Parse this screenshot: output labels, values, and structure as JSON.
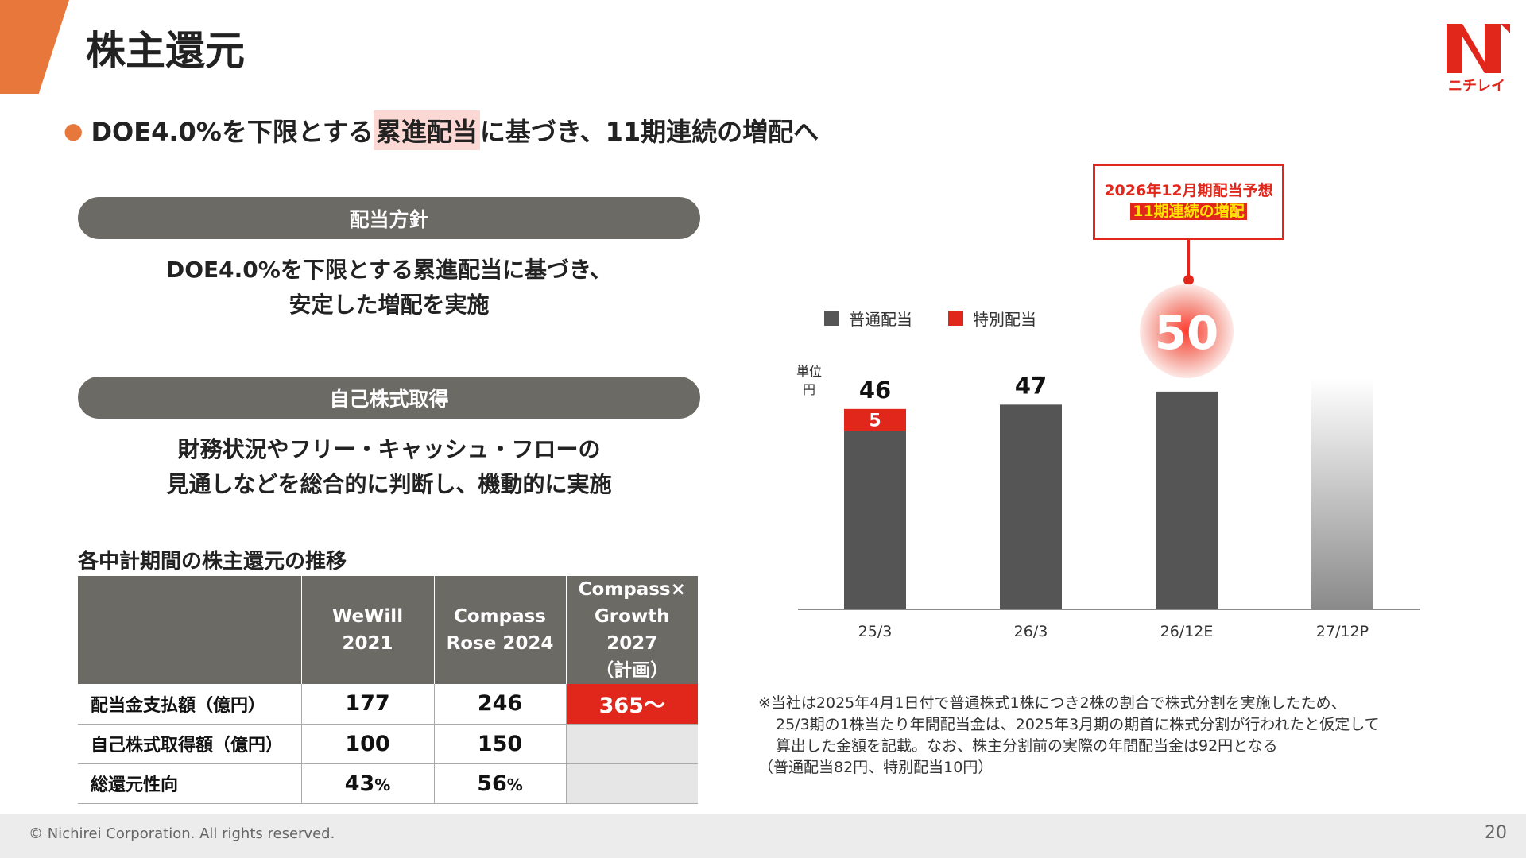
{
  "header": {
    "title": "株主還元",
    "logo_text": "ニチレイ",
    "brand_color": "#e1261c",
    "accent_color": "#e8773b"
  },
  "headline": {
    "bullet": "●",
    "before": "DOE4.0%を下限とする",
    "highlight": "累進配当",
    "after": "に基づき、11期連続の増配へ"
  },
  "policy": {
    "label": "配当方針",
    "line1": "DOE4.0%を下限とする累進配当に基づき、",
    "line2": "安定した増配を実施"
  },
  "buyback": {
    "label": "自己株式取得",
    "line1": "財務状況やフリー・キャッシュ・フローの",
    "line2": "見通しなどを総合的に判断し、機動的に実施"
  },
  "table": {
    "title": "各中計期間の株主還元の推移",
    "headers": [
      {
        "l1": "",
        "l2": "",
        "l3": ""
      },
      {
        "l1": "WeWill",
        "l2": "2021",
        "l3": ""
      },
      {
        "l1": "Compass",
        "l2": "Rose 2024",
        "l3": ""
      },
      {
        "l1": "Compass×",
        "l2": "Growth 2027",
        "l3": "（計画）"
      }
    ],
    "rows": [
      {
        "label": "配当金支払額（億円）",
        "v1": "177",
        "v2": "246",
        "v3": "365～",
        "u1": "",
        "u2": ""
      },
      {
        "label": "自己株式取得額（億円）",
        "v1": "100",
        "v2": "150",
        "v3": "",
        "u1": "",
        "u2": ""
      },
      {
        "label": "総還元性向",
        "v1": "43",
        "v2": "56",
        "v3": "",
        "u1": "%",
        "u2": "%"
      }
    ]
  },
  "callout": {
    "line1": "2026年12月期配当予想",
    "line2": "11期連続の増配"
  },
  "chart_data": {
    "type": "bar",
    "stacked": true,
    "categories": [
      "25/3",
      "26/3",
      "26/12E",
      "27/12P"
    ],
    "series": [
      {
        "name": "普通配当",
        "color": "#555555",
        "values": [
          41,
          47,
          50,
          null
        ]
      },
      {
        "name": "特別配当",
        "color": "#e1261c",
        "values": [
          5,
          0,
          0,
          0
        ]
      }
    ],
    "totals": [
      "46",
      "47",
      "50",
      ""
    ],
    "special_labels": [
      "5",
      "",
      "",
      ""
    ],
    "unit_line1": "単位",
    "unit_line2": "円",
    "ylim": [
      0,
      56
    ],
    "gradient_bar": {
      "category": "27/12P",
      "note": "future bar shown as fading grey gradient, no value"
    },
    "legend_position": "top-left",
    "grid": false
  },
  "footnote": {
    "line1": "※当社は2025年4月1日付で普通株式1株につき2株の割合で株式分割を実施したため、",
    "line2": "25/3期の1株当たり年間配当金は、2025年3月期の期首に株式分割が行われたと仮定して",
    "line3": "算出した金額を記載。なお、株主分割前の実際の年間配当金は92円となる",
    "line4": "（普通配当82円、特別配当10円）"
  },
  "footer": {
    "copyright": "© Nichirei Corporation. All rights reserved.",
    "page": "20"
  }
}
